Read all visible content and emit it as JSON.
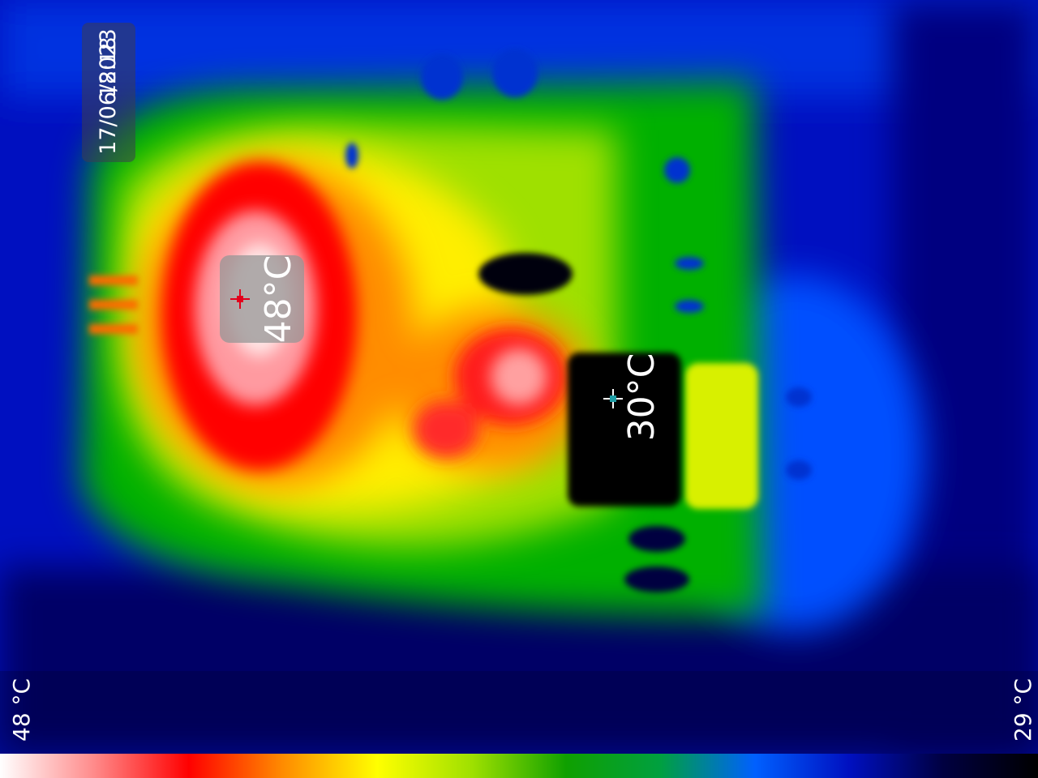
{
  "overlay": {
    "time": "18:18",
    "date": "17/06/2023"
  },
  "spots": {
    "hot": {
      "label": "48°C",
      "marker_color": "#e3001b"
    },
    "cold": {
      "label": "30°C",
      "marker_color": "#1e9ea6"
    }
  },
  "scale": {
    "max_label": "48 °C",
    "min_label": "29 °C",
    "palette": [
      "#ffffff",
      "#ff8a8a",
      "#ff0000",
      "#ff8c00",
      "#ffff00",
      "#9fe000",
      "#0fa000",
      "#00a040",
      "#0060ff",
      "#0010c0",
      "#000040",
      "#000000"
    ]
  },
  "icons": [
    "crosshair-icon"
  ]
}
